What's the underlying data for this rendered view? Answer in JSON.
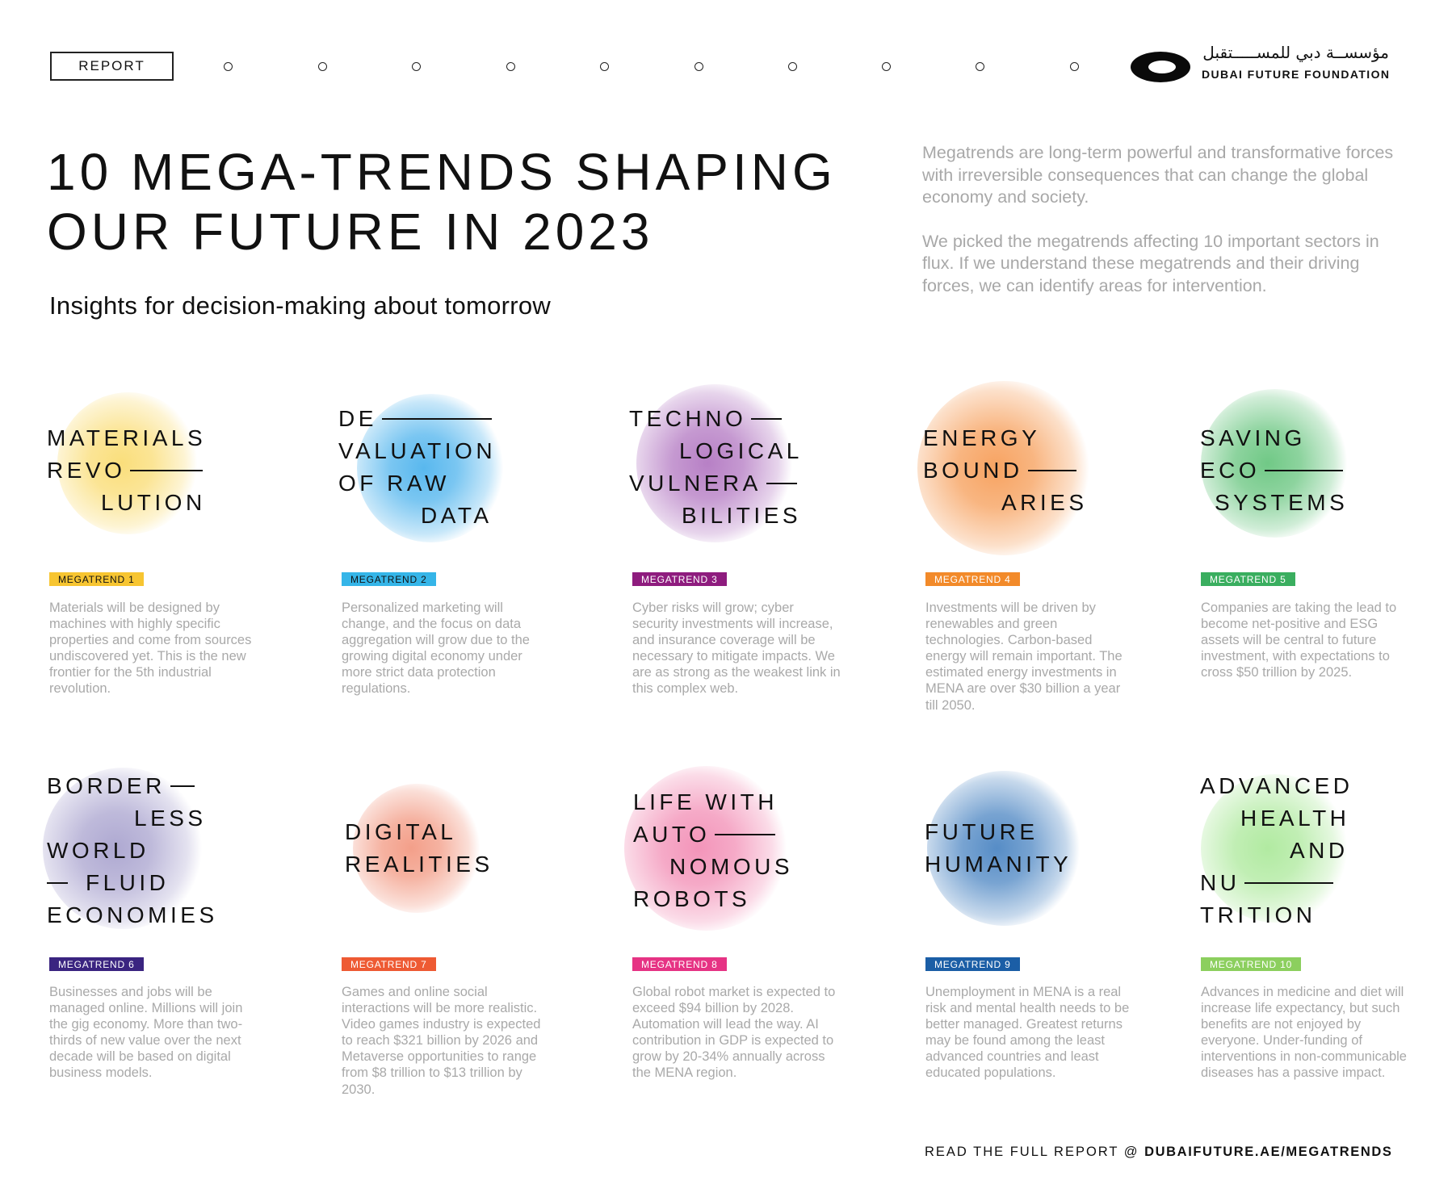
{
  "header": {
    "report_label": "REPORT",
    "nav_dots": 10,
    "logo": {
      "arabic": "مؤسســة دبي للمســـــتقبل",
      "english": "DUBAI FUTURE FOUNDATION",
      "icon": "eye-logo"
    }
  },
  "hero": {
    "title_lines": [
      "10 MEGA-TRENDS SHAPING",
      "OUR FUTURE IN 2023"
    ],
    "subtitle": "Insights for decision-making about tomorrow",
    "intro": [
      "Megatrends are long-term powerful and transformative forces with irreversible consequences that can change the global economy and society.",
      "We picked the megatrends affecting 10 important sectors in flux. If we understand these megatrends and their driving forces, we can identify areas for intervention."
    ]
  },
  "megatrends": [
    {
      "tag": "MEGATREND 1",
      "color": "#f7c531",
      "tag_text": "#111",
      "title": [
        "MATERIALS",
        "REVO",
        "LUTION"
      ],
      "description": "Materials will be designed by machines with highly specific properties and come from sources undiscovered yet. This is the new frontier for the 5th industrial revolution."
    },
    {
      "tag": "MEGATREND 2",
      "color": "#35b5e8",
      "tag_text": "#111",
      "title": [
        "DE",
        "VALUATION",
        "OF RAW",
        "DATA"
      ],
      "description": "Personalized marketing will change, and the focus on data aggregation will grow due to the growing digital economy under more strict data protection regulations."
    },
    {
      "tag": "MEGATREND 3",
      "color": "#8e1c7e",
      "tag_text": "#fff",
      "title": [
        "TECHNO",
        "LOGICAL",
        "VULNERA",
        "BILITIES"
      ],
      "description": "Cyber risks will grow; cyber security investments will increase, and insurance coverage will be necessary to mitigate impacts. We are as strong as the weakest link in this complex web."
    },
    {
      "tag": "MEGATREND 4",
      "color": "#f28a2a",
      "tag_text": "#fff",
      "title": [
        "ENERGY",
        "BOUND",
        "ARIES"
      ],
      "description": "Investments will be driven by renewables and green technologies. Carbon-based energy will remain important. The estimated energy investments in MENA are over $30 billion a year till 2050."
    },
    {
      "tag": "MEGATREND 5",
      "color": "#3aae5f",
      "tag_text": "#fff",
      "title": [
        "SAVING",
        "ECO",
        "SYSTEMS"
      ],
      "description": "Companies are taking the lead to become net-positive and ESG assets will be central to future investment, with expectations to cross $50 trillion by 2025."
    },
    {
      "tag": "MEGATREND 6",
      "color": "#3a2480",
      "tag_text": "#fff",
      "title": [
        "BORDER",
        "LESS",
        "WORLD",
        "FLUID",
        "ECONOMIES"
      ],
      "description": "Businesses and jobs will be managed online. Millions will join the gig economy. More than two-thirds of new value over the next decade will be based on digital business models."
    },
    {
      "tag": "MEGATREND 7",
      "color": "#ee5a33",
      "tag_text": "#fff",
      "title": [
        "DIGITAL",
        "REALITIES"
      ],
      "description": "Games and online social interactions will be more realistic. Video games industry is expected to reach $321 billion by 2026 and Metaverse opportunities to range from $8 trillion to $13 trillion by 2030."
    },
    {
      "tag": "MEGATREND 8",
      "color": "#e63384",
      "tag_text": "#fff",
      "title": [
        "LIFE WITH",
        "AUTO",
        "NOMOUS",
        "ROBOTS"
      ],
      "description": "Global robot market is expected to exceed $94 billion by 2028. Automation will lead the way. AI contribution in GDP is expected to grow by 20-34% annually across the MENA region."
    },
    {
      "tag": "MEGATREND 9",
      "color": "#1b5ea6",
      "tag_text": "#fff",
      "title": [
        "FUTURE",
        "HUMANITY"
      ],
      "description": "Unemployment in MENA is a real risk and mental health needs to be better managed. Greatest returns may be found among the least advanced countries and least educated populations."
    },
    {
      "tag": "MEGATREND 10",
      "color": "#8ccf5e",
      "tag_text": "#fff",
      "title": [
        "ADVANCED",
        "HEALTH",
        "AND",
        "NU",
        "TRITION"
      ],
      "description": "Advances in medicine and diet will increase life expectancy, but such benefits are not enjoyed by everyone. Under-funding of interventions in non-communicable diseases has a passive impact."
    }
  ],
  "footer": {
    "prefix": "READ THE FULL REPORT @ ",
    "link": "DUBAIFUTURE.AE/MEGATRENDS"
  }
}
